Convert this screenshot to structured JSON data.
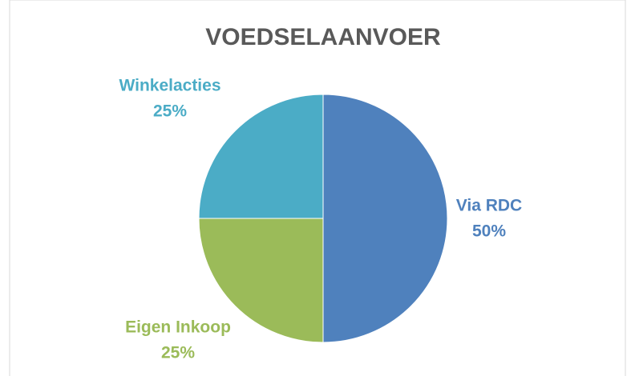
{
  "chart_data": {
    "type": "pie",
    "title": "VOEDSELAANVOER",
    "categories": [
      "Via RDC",
      "Eigen Inkoop",
      "Winkelacties"
    ],
    "values": [
      50,
      25,
      25
    ],
    "value_labels": [
      "50%",
      "25%",
      "25%"
    ],
    "colors": [
      "#4f81bd",
      "#9bbb59",
      "#4bacc6"
    ]
  }
}
